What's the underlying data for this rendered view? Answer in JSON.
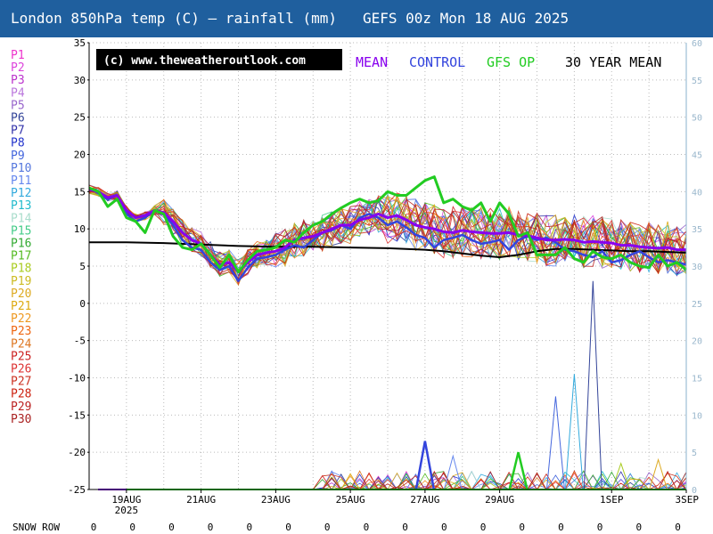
{
  "header": {
    "title": "London 850hPa temp (C) — rainfall (mm)   GEFS 00z Mon 18 AUG 2025"
  },
  "copyright": "(c) www.theweatheroutlook.com",
  "legend_labels": {
    "mean": "MEAN",
    "control": "CONTROL",
    "op": "GFS OP",
    "climate": "30 YEAR MEAN"
  },
  "colors": {
    "header_bg": "#1f5f9e",
    "mean": "#8800ee",
    "control": "#3344dd",
    "op": "#22cc22",
    "climate": "#000000",
    "right_axis": "#9ab7cc"
  },
  "snow_row": {
    "label": "SNOW ROW",
    "values": [
      "0",
      "0",
      "0",
      "0",
      "0",
      "0",
      "0",
      "0",
      "0",
      "0",
      "0",
      "0",
      "0",
      "0",
      "0",
      "0"
    ]
  },
  "chart_data": {
    "type": "line",
    "title": "London 850hPa temp (C) — rainfall (mm)   GEFS 00z Mon 18 AUG 2025",
    "x_ticks": [
      "19AUG 2025",
      "21AUG",
      "23AUG",
      "25AUG",
      "27AUG",
      "29AUG",
      "1SEP",
      "3SEP"
    ],
    "x_tick_days": [
      1,
      3,
      5,
      7,
      9,
      11,
      14,
      16
    ],
    "x_range_days": [
      0,
      16
    ],
    "left_axis": {
      "label": "850hPa temp (C)",
      "ylim": [
        -25,
        35
      ],
      "ticks": [
        35,
        30,
        25,
        20,
        15,
        10,
        5,
        0,
        -5,
        -10,
        -15,
        -20,
        -25
      ]
    },
    "right_axis": {
      "label": "rainfall (mm)",
      "ylim": [
        0,
        60
      ],
      "ticks": [
        60,
        55,
        50,
        45,
        40,
        35,
        30,
        25,
        20,
        15,
        10,
        5,
        0
      ]
    },
    "grid": true,
    "member_labels": [
      "P1",
      "P2",
      "P3",
      "P4",
      "P5",
      "P6",
      "P7",
      "P8",
      "P9",
      "P10",
      "P11",
      "P12",
      "P13",
      "P14",
      "P15",
      "P16",
      "P17",
      "P18",
      "P19",
      "P20",
      "P21",
      "P22",
      "P23",
      "P24",
      "P25",
      "P26",
      "P27",
      "P28",
      "P29",
      "P30"
    ],
    "member_colors": [
      "#ee33cc",
      "#dd44dd",
      "#bb33cc",
      "#bb77dd",
      "#9966cc",
      "#334499",
      "#3333aa",
      "#2233cc",
      "#4466dd",
      "#5577dd",
      "#6688ee",
      "#33aadd",
      "#22bbcc",
      "#aaddcc",
      "#44cc88",
      "#33aa33",
      "#55bb22",
      "#aacc22",
      "#ccbb22",
      "#ddaa22",
      "#ddaa11",
      "#ee9922",
      "#ee6611",
      "#dd7722",
      "#cc2222",
      "#dd3333",
      "#cc3322",
      "#cc2211",
      "#bb2222",
      "#aa2222"
    ],
    "series": [
      {
        "name": "MEAN",
        "x": [
          0,
          0.25,
          0.5,
          0.75,
          1,
          1.25,
          1.5,
          1.75,
          2,
          2.25,
          2.5,
          2.75,
          3,
          3.25,
          3.5,
          3.75,
          4,
          4.25,
          4.5,
          4.75,
          5,
          5.25,
          5.5,
          5.75,
          6,
          6.25,
          6.5,
          6.75,
          7,
          7.25,
          7.5,
          7.75,
          8,
          8.25,
          8.5,
          8.75,
          9,
          9.25,
          9.5,
          9.75,
          10,
          10.25,
          10.5,
          10.75,
          11,
          11.25,
          11.5,
          11.75,
          12,
          12.25,
          12.5,
          12.75,
          13,
          13.25,
          13.5,
          13.75,
          14,
          14.25,
          14.5,
          14.75,
          15,
          15.25,
          15.5,
          15.75,
          16
        ],
        "values": [
          15.3,
          15,
          14.2,
          14.5,
          12.5,
          11.5,
          11.8,
          12.5,
          12.2,
          11,
          9.5,
          8.5,
          8,
          6.5,
          5.2,
          5.5,
          4.2,
          5.5,
          6.5,
          6.8,
          7,
          7.5,
          8.5,
          8.8,
          9,
          9.5,
          10,
          10.5,
          10.5,
          11.2,
          11.5,
          12,
          11.5,
          11.8,
          11.2,
          10.5,
          10.2,
          10,
          9.6,
          9.5,
          9.8,
          9.6,
          9.5,
          9.4,
          9.4,
          9.5,
          9.2,
          9.1,
          8.8,
          8.5,
          8.5,
          8.6,
          8.5,
          8.2,
          8.3,
          8.2,
          8.1,
          7.8,
          7.8,
          7.6,
          7.5,
          7.4,
          7.5,
          7.2,
          7.2
        ]
      },
      {
        "name": "CONTROL",
        "x": [
          0,
          0.25,
          0.5,
          0.75,
          1,
          1.25,
          1.5,
          1.75,
          2,
          2.25,
          2.5,
          2.75,
          3,
          3.25,
          3.5,
          3.75,
          4,
          4.25,
          4.5,
          4.75,
          5,
          5.25,
          5.5,
          5.75,
          6,
          6.25,
          6.5,
          6.75,
          7,
          7.25,
          7.5,
          7.75,
          8,
          8.25,
          8.5,
          8.75,
          9,
          9.25,
          9.5,
          9.75,
          10,
          10.25,
          10.5,
          10.75,
          11,
          11.25,
          11.5,
          11.75,
          12,
          12.25,
          12.5,
          12.75,
          13,
          13.25,
          13.5,
          13.75,
          14,
          14.25,
          14.5,
          14.75,
          15,
          15.25,
          15.5,
          15.75,
          16
        ],
        "values": [
          15.5,
          14.8,
          14,
          14.5,
          12,
          11,
          11.5,
          12.5,
          12,
          10.5,
          8.5,
          7.5,
          7.2,
          5.5,
          4.5,
          5,
          3,
          4.8,
          6,
          6.2,
          6.5,
          7.2,
          7.8,
          7.5,
          8.5,
          9.5,
          9.8,
          10.5,
          10,
          11.5,
          12,
          11.5,
          10.5,
          11,
          10.2,
          9.2,
          8.8,
          7.5,
          8.5,
          8.8,
          9.2,
          8.5,
          8,
          8.2,
          8.5,
          7.2,
          8.5,
          9,
          8.5,
          8.8,
          8.2,
          7.2,
          7,
          6.5,
          6.2,
          7,
          5.5,
          5.8,
          6.5,
          7,
          6.2,
          5.5,
          5.8,
          5.5,
          5.2
        ]
      },
      {
        "name": "GFS OP",
        "x": [
          0,
          0.25,
          0.5,
          0.75,
          1,
          1.25,
          1.5,
          1.75,
          2,
          2.25,
          2.5,
          2.75,
          3,
          3.25,
          3.5,
          3.75,
          4,
          4.25,
          4.5,
          4.75,
          5,
          5.25,
          5.5,
          5.75,
          6,
          6.25,
          6.5,
          6.75,
          7,
          7.25,
          7.5,
          7.75,
          8,
          8.25,
          8.5,
          8.75,
          9,
          9.25,
          9.5,
          9.75,
          10,
          10.25,
          10.5,
          10.75,
          11,
          11.25,
          11.5,
          11.75,
          12,
          12.25,
          12.5,
          12.75,
          13,
          13.25,
          13.5,
          13.75,
          14,
          14.25,
          14.5,
          14.75,
          15,
          15.25,
          15.5,
          15.75,
          16
        ],
        "values": [
          15.5,
          15,
          13,
          14,
          11.5,
          11,
          9.5,
          12.5,
          12,
          9,
          7.5,
          7.2,
          8,
          6.5,
          4.8,
          6.5,
          4.2,
          5.8,
          7,
          7.2,
          7.5,
          8.5,
          8.2,
          9.5,
          10.5,
          11,
          12,
          12.8,
          13.5,
          14,
          13.5,
          13.8,
          15,
          14.5,
          14.5,
          15.5,
          16.5,
          17,
          13.5,
          14,
          13,
          12.5,
          13.5,
          11,
          13.5,
          12,
          9,
          9.5,
          6.5,
          6.5,
          6.5,
          7.5,
          6,
          5.5,
          7,
          6.2,
          6,
          6.5,
          5.5,
          5,
          4.8,
          6.5,
          5,
          5.5,
          4.5
        ]
      },
      {
        "name": "30 YEAR MEAN",
        "x": [
          0,
          1,
          2,
          3,
          4,
          5,
          6,
          7,
          8,
          8.5,
          9,
          9.5,
          10,
          10.5,
          11,
          11.5,
          12,
          12.5,
          13,
          13.5,
          14,
          14.5,
          15,
          15.5,
          16
        ],
        "values": [
          8.2,
          8.2,
          8.1,
          7.9,
          7.7,
          7.6,
          7.6,
          7.5,
          7.4,
          7.3,
          7.2,
          7,
          6.7,
          6.4,
          6.2,
          6.5,
          7,
          7.3,
          7.3,
          7.2,
          7.1,
          7,
          7,
          6.9,
          6.8
        ]
      }
    ],
    "rainfall_peaks": [
      {
        "x": 9.0,
        "mm": 6.5,
        "series": "CONTROL"
      },
      {
        "x": 9.75,
        "mm": 4.5,
        "series": "P11"
      },
      {
        "x": 11.5,
        "mm": 5.0,
        "series": "GFS OP"
      },
      {
        "x": 12.5,
        "mm": 12.5,
        "series": "P9"
      },
      {
        "x": 13.0,
        "mm": 15.5,
        "series": "P12"
      },
      {
        "x": 13.5,
        "mm": 28.0,
        "series": "P6"
      },
      {
        "x": 14.25,
        "mm": 3.5,
        "series": "P18"
      },
      {
        "x": 15.25,
        "mm": 4.0,
        "series": "P20"
      }
    ]
  }
}
